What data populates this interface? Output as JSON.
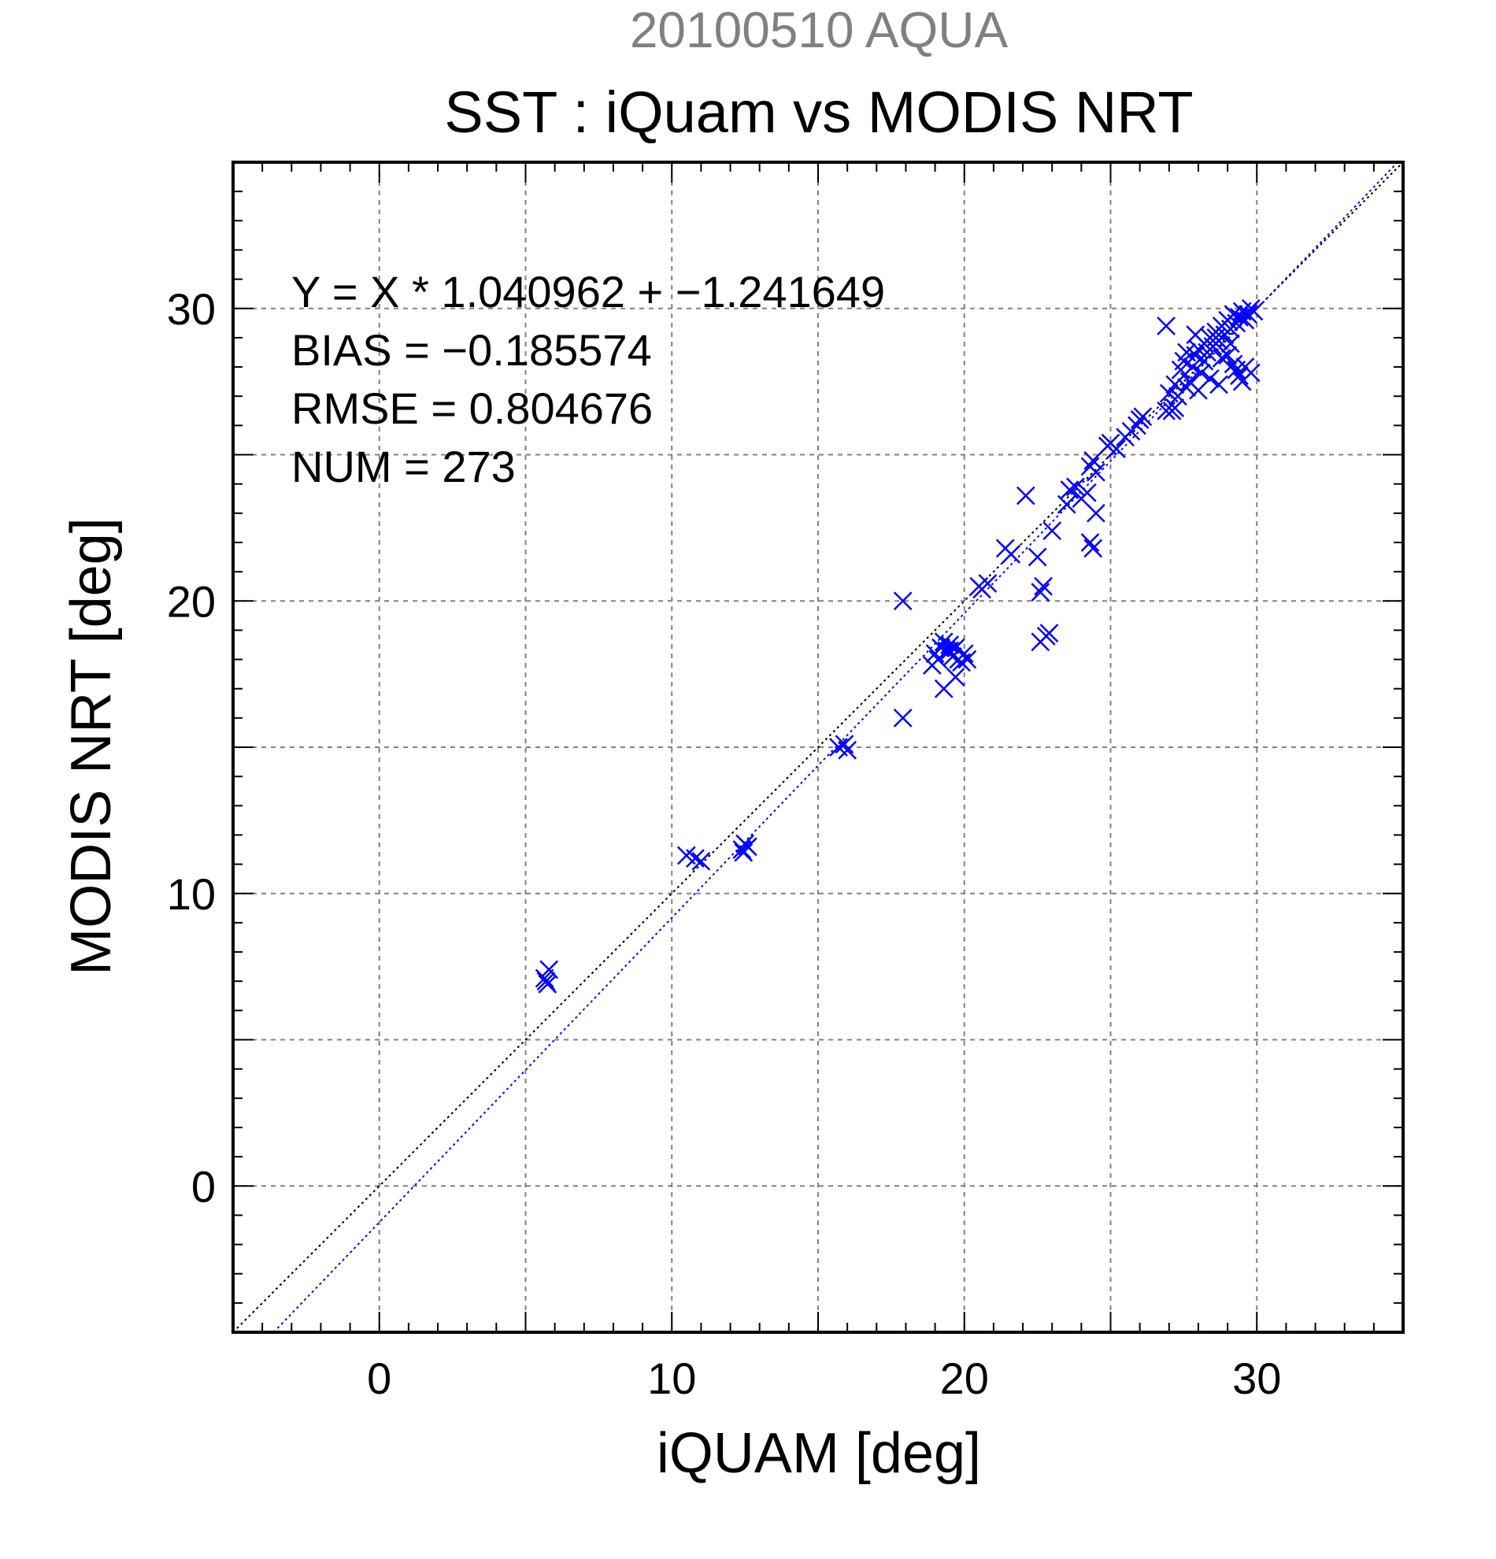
{
  "chart_data": {
    "type": "scatter",
    "title": "SST : iQuam vs MODIS NRT",
    "subtitle": "20100510 AQUA",
    "xlabel": "iQUAM [deg]",
    "ylabel": "MODIS NRT [deg]",
    "xlim": [
      -5,
      35
    ],
    "ylim": [
      -5,
      35
    ],
    "major_ticks": [
      0,
      10,
      20,
      30
    ],
    "grid_values": [
      0,
      5,
      10,
      15,
      20,
      25,
      30
    ],
    "minor_tick_step": 1,
    "grid": true,
    "annotations": [
      "Y = X * 1.040962 + −1.241649",
      "BIAS = −0.185574",
      "RMSE = 0.804676",
      "NUM = 273"
    ],
    "fit": {
      "slope": 1.040962,
      "intercept": -1.241649
    },
    "identity_line": true,
    "colors": {
      "points": "#0000ff",
      "fit_line": "#0000ff",
      "identity_line": "#000000",
      "subtitle": "#808080",
      "grid": "#808080"
    },
    "series": [
      {
        "marker": "x",
        "x": [
          5.7,
          5.8,
          5.75,
          5.65,
          10.5,
          10.8,
          11.0,
          12.4,
          12.5,
          12.6,
          12.45,
          15.7,
          15.9,
          16.0,
          17.9,
          17.9,
          18.9,
          19.0,
          19.1,
          19.2,
          19.3,
          19.4,
          19.5,
          19.6,
          19.7,
          19.8,
          19.9,
          20.0,
          20.1,
          19.3,
          19.5,
          19.7,
          20.5,
          20.6,
          20.8,
          21.4,
          21.6,
          22.1,
          22.5,
          22.6,
          22.7,
          22.8,
          22.6,
          22.9,
          23.0,
          23.5,
          23.6,
          23.8,
          24.0,
          24.2,
          24.3,
          24.4,
          24.5,
          24.3,
          24.4,
          24.5,
          24.9,
          25.0,
          25.2,
          25.5,
          25.7,
          25.9,
          26.0,
          26.1,
          26.9,
          27.0,
          27.1,
          27.2,
          27.3,
          27.4,
          27.5,
          27.6,
          27.7,
          27.8,
          27.9,
          28.0,
          28.1,
          28.2,
          28.3,
          28.4,
          28.5,
          28.6,
          28.7,
          28.8,
          28.9,
          29.0,
          29.1,
          29.2,
          29.3,
          29.4,
          29.5,
          29.6,
          29.7,
          29.8,
          29.9,
          29.0,
          29.2,
          29.4,
          29.6,
          28.6,
          28.8,
          29.1,
          29.3,
          28.2,
          28.4,
          27.9,
          27.6,
          29.8,
          29.5,
          26.9,
          27.2,
          28.0,
          28.7
        ],
        "y": [
          7.0,
          7.4,
          6.9,
          7.1,
          11.3,
          11.2,
          11.1,
          11.5,
          11.7,
          11.6,
          11.4,
          15.0,
          15.1,
          14.9,
          20.0,
          16.0,
          17.8,
          18.2,
          18.0,
          18.4,
          17.0,
          18.3,
          18.5,
          18.1,
          17.4,
          18.0,
          17.9,
          18.2,
          18.0,
          18.6,
          18.3,
          18.4,
          20.5,
          20.4,
          20.6,
          21.8,
          21.6,
          23.6,
          21.5,
          20.3,
          20.5,
          18.8,
          18.6,
          18.9,
          22.4,
          23.3,
          23.8,
          23.9,
          23.5,
          23.7,
          24.6,
          24.8,
          24.4,
          22.0,
          21.8,
          23.0,
          25.3,
          25.4,
          25.2,
          25.6,
          25.8,
          26.0,
          26.2,
          26.3,
          29.4,
          27.1,
          26.5,
          27.4,
          27.0,
          27.9,
          28.2,
          27.3,
          27.5,
          28.0,
          28.4,
          28.6,
          27.8,
          28.8,
          28.5,
          29.0,
          28.7,
          29.2,
          28.9,
          29.4,
          29.1,
          29.6,
          29.3,
          29.8,
          29.5,
          29.7,
          29.9,
          29.6,
          29.8,
          30.0,
          29.9,
          28.4,
          28.1,
          27.7,
          28.0,
          29.0,
          28.3,
          28.8,
          27.9,
          28.2,
          27.6,
          29.1,
          28.5,
          27.8,
          27.5,
          26.5,
          26.6,
          27.2,
          27.4
        ]
      }
    ]
  }
}
